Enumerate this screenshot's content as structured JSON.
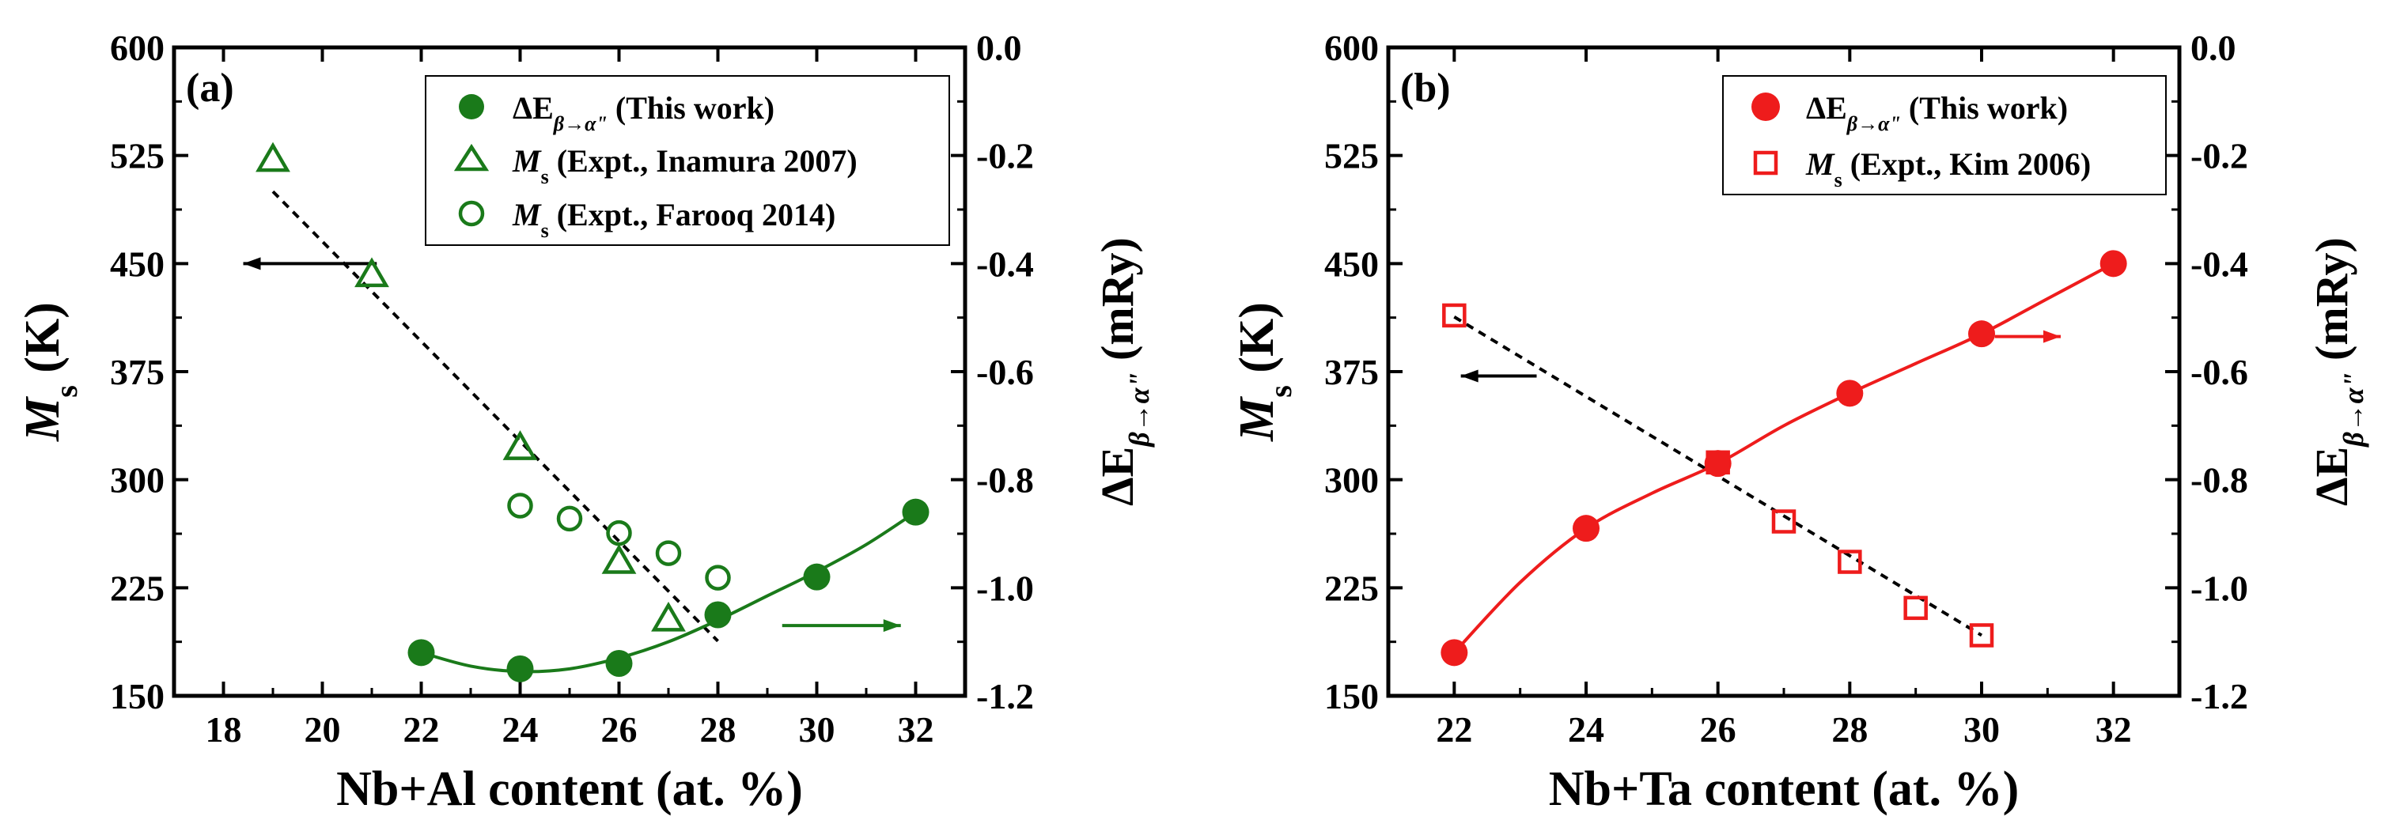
{
  "colors": {
    "green": "#1a7a1a",
    "red": "#ee1c1c",
    "axis": "#000000",
    "dashed": "#000000"
  },
  "chart_data": [
    {
      "type": "scatter",
      "panel_label": "(a)",
      "xlabel": "Nb+Al content (at. %)",
      "ylabel_left": {
        "italic": "M",
        "sub": "s",
        "rest": " (K)"
      },
      "ylabel_right": {
        "prefix": "ΔE",
        "sub": "β→α\"",
        "rest": " (mRy)"
      },
      "xlim": [
        17,
        33
      ],
      "ylim_left": [
        150,
        600
      ],
      "ylim_right": [
        -1.2,
        0.0
      ],
      "x_ticks": [
        "18",
        "20",
        "22",
        "24",
        "26",
        "28",
        "30",
        "32"
      ],
      "y_ticks_left": [
        "150",
        "225",
        "300",
        "375",
        "450",
        "525",
        "600"
      ],
      "y_ticks_right": [
        "-1.2",
        "-1.0",
        "-0.8",
        "-0.6",
        "-0.4",
        "-0.2",
        "0.0"
      ],
      "legend": [
        {
          "marker": "filled-circle",
          "main": "ΔE",
          "sub": "β→α\"",
          "suffix": " (This work)"
        },
        {
          "marker": "open-triangle",
          "main": "M",
          "sub": "s",
          "suffix": " (Expt., Inamura 2007)"
        },
        {
          "marker": "open-circle",
          "main": "M",
          "sub": "s",
          "suffix": " (Expt., Farooq 2014)"
        }
      ],
      "series": [
        {
          "name": "ΔE β→α\" (This work)",
          "axis": "right",
          "marker": "filled-circle",
          "color": "green",
          "x": [
            22,
            24,
            26,
            28,
            30,
            32
          ],
          "y": [
            -1.12,
            -1.15,
            -1.14,
            -1.05,
            -0.98,
            -0.86
          ]
        },
        {
          "name": "Ms (Expt., Inamura 2007)",
          "axis": "left",
          "marker": "open-triangle",
          "color": "green",
          "x": [
            19,
            21,
            24,
            26,
            27
          ],
          "y": [
            522,
            442,
            322,
            243,
            203
          ]
        },
        {
          "name": "Ms (Expt., Farooq 2014)",
          "axis": "left",
          "marker": "open-circle",
          "color": "green",
          "x": [
            24,
            25,
            26,
            27,
            28
          ],
          "y": [
            282,
            273,
            263,
            249,
            232
          ]
        }
      ],
      "fit_curve": {
        "axis": "right",
        "color": "green",
        "x": [
          22,
          23,
          24,
          25,
          26,
          27,
          28,
          29,
          30,
          31,
          32
        ],
        "y": [
          -1.12,
          -1.145,
          -1.155,
          -1.15,
          -1.13,
          -1.1,
          -1.06,
          -1.015,
          -0.97,
          -0.92,
          -0.86
        ]
      },
      "fit_line": {
        "axis": "left",
        "x": [
          19,
          28
        ],
        "y": [
          500,
          188
        ]
      },
      "arrows": [
        {
          "direction": "left",
          "x": [
            21.1,
            18.4
          ],
          "y": 450
        },
        {
          "direction": "right",
          "x": [
            29.3,
            31.7
          ],
          "y": -1.07
        }
      ]
    },
    {
      "type": "scatter",
      "panel_label": "(b)",
      "xlabel": "Nb+Ta content (at. %)",
      "ylabel_left": {
        "italic": "M",
        "sub": "s",
        "rest": " (K)"
      },
      "ylabel_right": {
        "prefix": "ΔE",
        "sub": "β→α\"",
        "rest": " (mRy)"
      },
      "xlim": [
        21,
        33
      ],
      "ylim_left": [
        150,
        600
      ],
      "ylim_right": [
        -1.2,
        0.0
      ],
      "x_ticks": [
        "22",
        "24",
        "26",
        "28",
        "30",
        "32"
      ],
      "y_ticks_left": [
        "150",
        "225",
        "300",
        "375",
        "450",
        "525",
        "600"
      ],
      "y_ticks_right": [
        "-1.2",
        "-1.0",
        "-0.8",
        "-0.6",
        "-0.4",
        "-0.2",
        "0.0"
      ],
      "legend": [
        {
          "marker": "filled-circle",
          "main": "ΔE",
          "sub": "β→α\"",
          "suffix": " (This work)"
        },
        {
          "marker": "open-square",
          "main": "M",
          "sub": "s",
          "suffix": " (Expt., Kim 2006)"
        }
      ],
      "series": [
        {
          "name": "ΔE β→α\" (This work)",
          "axis": "right",
          "marker": "filled-circle",
          "color": "red",
          "x": [
            22,
            24,
            26,
            28,
            30,
            32
          ],
          "y": [
            -1.12,
            -0.89,
            -0.77,
            -0.64,
            -0.53,
            -0.4
          ]
        },
        {
          "name": "Ms (Expt., Kim 2006)",
          "axis": "left",
          "marker": "open-square",
          "color": "red",
          "x": [
            22,
            26,
            27,
            28,
            29,
            30
          ],
          "y": [
            414,
            312,
            271,
            243,
            211,
            192
          ]
        }
      ],
      "fit_curve": {
        "axis": "right",
        "color": "red",
        "x": [
          22,
          23,
          24,
          25,
          26,
          27,
          28,
          29,
          30,
          31,
          32
        ],
        "y": [
          -1.12,
          -0.99,
          -0.89,
          -0.825,
          -0.77,
          -0.7,
          -0.64,
          -0.585,
          -0.53,
          -0.465,
          -0.4
        ]
      },
      "fit_line": {
        "axis": "left",
        "x": [
          22,
          30
        ],
        "y": [
          413,
          192
        ]
      },
      "arrows": [
        {
          "direction": "left",
          "x": [
            23.25,
            22.1
          ],
          "y": 372
        },
        {
          "direction": "right",
          "x": [
            30.2,
            31.2
          ],
          "y": -0.535
        }
      ]
    }
  ]
}
